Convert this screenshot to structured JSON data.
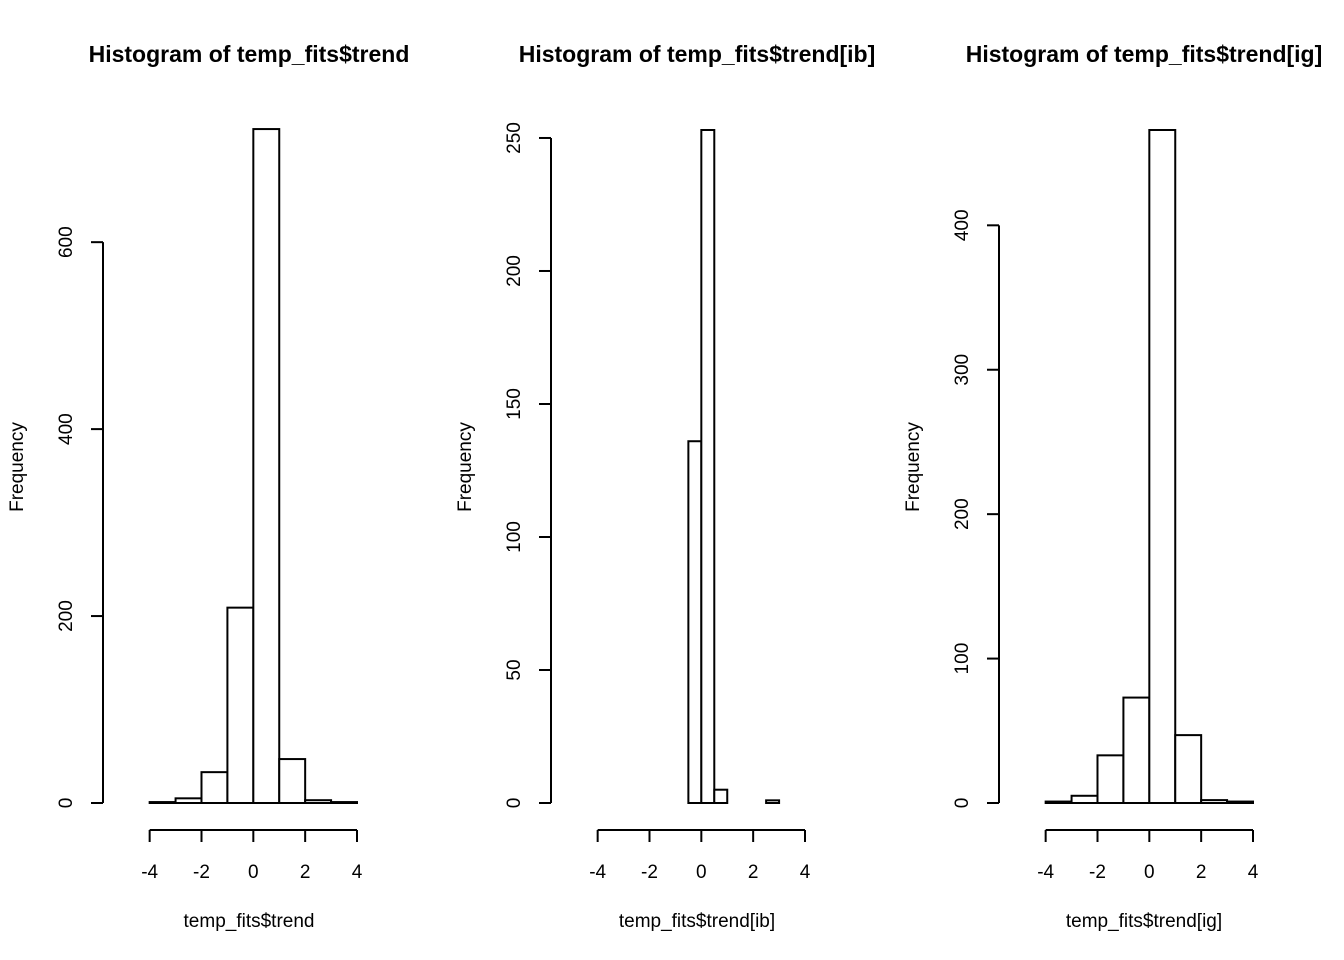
{
  "chart_data": [
    {
      "type": "bar",
      "title": "Histogram of temp_fits$trend",
      "xlabel": "temp_fits$trend",
      "ylabel": "Frequency",
      "xlim": [
        -5.8,
        4
      ],
      "ylim": [
        0,
        720
      ],
      "xticks": [
        -4,
        -2,
        0,
        2,
        4
      ],
      "yticks": [
        0,
        200,
        400,
        600
      ],
      "bins": [
        {
          "x0": -5,
          "x1": -4,
          "count": 0
        },
        {
          "x0": -4,
          "x1": -3,
          "count": 1
        },
        {
          "x0": -3,
          "x1": -2,
          "count": 5
        },
        {
          "x0": -2,
          "x1": -1,
          "count": 33
        },
        {
          "x0": -1,
          "x1": 0,
          "count": 209
        },
        {
          "x0": 0,
          "x1": 1,
          "count": 721
        },
        {
          "x0": 1,
          "x1": 2,
          "count": 47
        },
        {
          "x0": 2,
          "x1": 3,
          "count": 3
        },
        {
          "x0": 3,
          "x1": 4,
          "count": 1
        }
      ]
    },
    {
      "type": "bar",
      "title": "Histogram of temp_fits$trend[ib]",
      "xlabel": "temp_fits$trend[ib]",
      "ylabel": "Frequency",
      "xlim": [
        -5.8,
        4
      ],
      "ylim": [
        0,
        253
      ],
      "xticks": [
        -4,
        -2,
        0,
        2,
        4
      ],
      "yticks": [
        0,
        50,
        100,
        150,
        200,
        250
      ],
      "bins": [
        {
          "x0": -0.5,
          "x1": 0,
          "count": 136
        },
        {
          "x0": 0,
          "x1": 0.5,
          "count": 253
        },
        {
          "x0": 0.5,
          "x1": 1,
          "count": 5
        },
        {
          "x0": 1,
          "x1": 1.5,
          "count": 0
        },
        {
          "x0": 1.5,
          "x1": 2,
          "count": 0
        },
        {
          "x0": 2,
          "x1": 2.5,
          "count": 0
        },
        {
          "x0": 2.5,
          "x1": 3,
          "count": 1
        }
      ]
    },
    {
      "type": "bar",
      "title": "Histogram of temp_fits$trend[ig]",
      "xlabel": "temp_fits$trend[ig]",
      "ylabel": "Frequency",
      "xlim": [
        -5.8,
        4
      ],
      "ylim": [
        0,
        466
      ],
      "xticks": [
        -4,
        -2,
        0,
        2,
        4
      ],
      "yticks": [
        0,
        100,
        200,
        300,
        400
      ],
      "bins": [
        {
          "x0": -5,
          "x1": -4,
          "count": 0
        },
        {
          "x0": -4,
          "x1": -3,
          "count": 1
        },
        {
          "x0": -3,
          "x1": -2,
          "count": 5
        },
        {
          "x0": -2,
          "x1": -1,
          "count": 33
        },
        {
          "x0": -1,
          "x1": 0,
          "count": 73
        },
        {
          "x0": 0,
          "x1": 1,
          "count": 466
        },
        {
          "x0": 1,
          "x1": 2,
          "count": 47
        },
        {
          "x0": 2,
          "x1": 3,
          "count": 2
        },
        {
          "x0": 3,
          "x1": 4,
          "count": 1
        }
      ]
    }
  ]
}
